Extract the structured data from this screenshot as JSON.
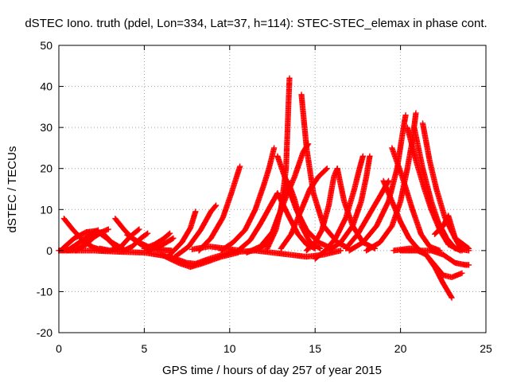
{
  "chart_data": {
    "type": "scatter",
    "title": "dSTEC Iono. truth (pdel, Lon=334, Lat=37, h=114): STEC-STEC_elemax in phase cont.",
    "xlabel": "GPS time / hours of day 257 of year 2015",
    "ylabel": "dSTEC  / TECUs",
    "xlim": [
      0,
      25
    ],
    "ylim": [
      -20,
      50
    ],
    "x_ticks": [
      0,
      5,
      10,
      15,
      20,
      25
    ],
    "y_ticks": [
      -20,
      -10,
      0,
      10,
      20,
      30,
      40,
      50
    ],
    "grid": true,
    "marker": "+",
    "colors": {
      "series": "#ff0000",
      "grid": "#a0a0a0",
      "axis": "#000000"
    },
    "series": [
      {
        "values": [
          [
            0.0,
            0.0
          ],
          [
            0.6,
            0.3
          ],
          [
            1.2,
            2.0
          ],
          [
            1.8,
            3.8
          ],
          [
            2.3,
            5.0
          ]
        ]
      },
      {
        "values": [
          [
            0.3,
            7.8
          ],
          [
            0.8,
            5.2
          ],
          [
            1.4,
            2.5
          ],
          [
            2.0,
            0.8
          ],
          [
            2.6,
            0.0
          ]
        ]
      },
      {
        "values": [
          [
            0.2,
            0.4
          ],
          [
            0.9,
            3.0
          ],
          [
            1.6,
            4.5
          ],
          [
            2.2,
            4.8
          ],
          [
            2.8,
            3.0
          ],
          [
            3.3,
            1.0
          ]
        ]
      },
      {
        "values": [
          [
            0.5,
            0.0
          ],
          [
            1.2,
            0.6
          ],
          [
            1.9,
            2.8
          ],
          [
            2.5,
            4.5
          ],
          [
            2.9,
            5.2
          ]
        ]
      },
      {
        "values": [
          [
            1.0,
            0.0
          ],
          [
            1.6,
            1.5
          ],
          [
            2.1,
            3.5
          ],
          [
            2.5,
            4.5
          ],
          [
            3.1,
            2.0
          ],
          [
            3.8,
            0.3
          ]
        ]
      },
      {
        "values": [
          [
            3.3,
            7.8
          ],
          [
            3.8,
            5.2
          ],
          [
            4.3,
            3.0
          ],
          [
            4.8,
            1.5
          ],
          [
            5.3,
            0.5
          ]
        ]
      },
      {
        "values": [
          [
            2.4,
            0.5
          ],
          [
            3.0,
            0.0
          ],
          [
            3.6,
            0.8
          ],
          [
            4.2,
            3.5
          ],
          [
            4.7,
            5.2
          ]
        ]
      },
      {
        "values": [
          [
            3.8,
            0.0
          ],
          [
            4.3,
            1.0
          ],
          [
            4.8,
            3.0
          ],
          [
            5.2,
            4.2
          ]
        ]
      },
      {
        "values": [
          [
            4.0,
            3.8
          ],
          [
            4.7,
            2.0
          ],
          [
            5.2,
            1.0
          ],
          [
            5.9,
            0.2
          ],
          [
            6.6,
            0.0
          ]
        ]
      },
      {
        "values": [
          [
            5.0,
            0.5
          ],
          [
            5.6,
            1.5
          ],
          [
            6.1,
            2.8
          ],
          [
            6.5,
            4.2
          ]
        ]
      },
      {
        "values": [
          [
            5.2,
            0.0
          ],
          [
            5.8,
            0.8
          ],
          [
            6.3,
            2.0
          ],
          [
            6.7,
            3.0
          ]
        ]
      },
      {
        "values": [
          [
            0.0,
            0.0
          ],
          [
            2.0,
            0.0
          ],
          [
            3.5,
            -0.3
          ],
          [
            5.0,
            -0.5
          ],
          [
            6.5,
            -1.5
          ],
          [
            7.5,
            -3.0
          ],
          [
            8.0,
            -3.2
          ],
          [
            8.8,
            -2.0
          ],
          [
            10.0,
            -0.5
          ],
          [
            11.5,
            0.0
          ]
        ]
      },
      {
        "values": [
          [
            6.0,
            -1.0
          ],
          [
            7.0,
            -3.0
          ],
          [
            7.7,
            -4.0
          ],
          [
            8.5,
            -3.0
          ],
          [
            9.5,
            -1.5
          ],
          [
            10.5,
            -0.5
          ]
        ]
      },
      {
        "values": [
          [
            6.5,
            -1.0
          ],
          [
            7.2,
            2.0
          ],
          [
            7.7,
            5.5
          ],
          [
            8.0,
            9.5
          ]
        ]
      },
      {
        "values": [
          [
            6.8,
            -1.5
          ],
          [
            7.6,
            1.0
          ],
          [
            8.3,
            5.0
          ],
          [
            8.9,
            9.5
          ],
          [
            9.2,
            11.0
          ]
        ]
      },
      {
        "values": [
          [
            8.2,
            0.0
          ],
          [
            8.9,
            3.0
          ],
          [
            9.6,
            8.0
          ],
          [
            10.1,
            14.0
          ],
          [
            10.6,
            20.5
          ]
        ]
      },
      {
        "values": [
          [
            7.8,
            0.3
          ],
          [
            8.8,
            1.0
          ],
          [
            9.8,
            0.5
          ],
          [
            10.6,
            0.0
          ]
        ]
      },
      {
        "values": [
          [
            9.5,
            0.0
          ],
          [
            10.2,
            2.0
          ],
          [
            10.9,
            5.0
          ],
          [
            11.5,
            10.0
          ],
          [
            12.0,
            16.0
          ],
          [
            12.3,
            20.0
          ],
          [
            12.6,
            25.0
          ]
        ]
      },
      {
        "values": [
          [
            10.5,
            0.0
          ],
          [
            11.2,
            2.5
          ],
          [
            11.8,
            6.5
          ],
          [
            12.4,
            11.0
          ],
          [
            12.8,
            14.0
          ],
          [
            13.5,
            8.0
          ],
          [
            14.0,
            4.0
          ],
          [
            14.5,
            1.5
          ],
          [
            15.0,
            0.5
          ]
        ]
      },
      {
        "values": [
          [
            11.0,
            -0.5
          ],
          [
            11.8,
            1.0
          ],
          [
            12.5,
            4.5
          ],
          [
            13.0,
            10.0
          ],
          [
            13.3,
            20.0
          ],
          [
            13.5,
            42.0
          ]
        ]
      },
      {
        "values": [
          [
            11.5,
            0.0
          ],
          [
            12.1,
            1.5
          ],
          [
            12.6,
            5.0
          ],
          [
            13.2,
            12.0
          ],
          [
            13.8,
            18.0
          ],
          [
            14.3,
            24.0
          ],
          [
            14.6,
            26.0
          ]
        ]
      },
      {
        "values": [
          [
            12.2,
            0.5
          ],
          [
            12.7,
            5.0
          ],
          [
            13.1,
            12.0
          ],
          [
            13.4,
            17.0
          ],
          [
            13.8,
            12.5
          ],
          [
            14.2,
            6.0
          ],
          [
            14.7,
            2.0
          ],
          [
            15.3,
            0.5
          ]
        ]
      },
      {
        "values": [
          [
            12.8,
            23.0
          ],
          [
            13.3,
            17.0
          ],
          [
            13.9,
            10.0
          ],
          [
            14.5,
            5.0
          ],
          [
            15.2,
            2.0
          ],
          [
            16.0,
            0.5
          ]
        ]
      },
      {
        "values": [
          [
            14.2,
            38.0
          ],
          [
            14.5,
            25.0
          ],
          [
            14.9,
            14.0
          ],
          [
            15.5,
            6.0
          ],
          [
            16.3,
            2.0
          ],
          [
            17.0,
            0.5
          ]
        ]
      },
      {
        "values": [
          [
            11.5,
            0.0
          ],
          [
            12.5,
            -0.5
          ],
          [
            13.5,
            -1.0
          ],
          [
            14.5,
            -1.5
          ],
          [
            15.5,
            -1.0
          ],
          [
            16.5,
            0.0
          ]
        ]
      },
      {
        "values": [
          [
            13.0,
            0.5
          ],
          [
            13.6,
            4.0
          ],
          [
            14.2,
            10.0
          ],
          [
            14.7,
            15.0
          ],
          [
            15.2,
            18.0
          ],
          [
            15.7,
            20.0
          ]
        ]
      },
      {
        "values": [
          [
            14.5,
            0.0
          ],
          [
            15.0,
            2.0
          ],
          [
            15.4,
            5.0
          ],
          [
            15.8,
            11.0
          ],
          [
            16.1,
            18.0
          ],
          [
            16.3,
            20.0
          ]
        ]
      },
      {
        "values": [
          [
            15.0,
            -2.0
          ],
          [
            15.6,
            0.0
          ],
          [
            16.2,
            3.0
          ],
          [
            16.8,
            8.0
          ],
          [
            17.3,
            15.0
          ],
          [
            17.6,
            20.0
          ],
          [
            17.8,
            23.0
          ]
        ]
      },
      {
        "values": [
          [
            16.3,
            20.0
          ],
          [
            16.7,
            12.0
          ],
          [
            17.2,
            6.0
          ],
          [
            17.8,
            2.0
          ],
          [
            18.5,
            0.5
          ]
        ]
      },
      {
        "values": [
          [
            15.8,
            0.0
          ],
          [
            16.5,
            2.0
          ],
          [
            17.2,
            6.0
          ],
          [
            17.7,
            12.0
          ],
          [
            18.0,
            18.0
          ],
          [
            18.2,
            23.0
          ]
        ]
      },
      {
        "values": [
          [
            16.8,
            0.5
          ],
          [
            17.5,
            4.0
          ],
          [
            18.2,
            9.0
          ],
          [
            18.9,
            14.0
          ],
          [
            19.3,
            17.0
          ]
        ]
      },
      {
        "values": [
          [
            17.0,
            0.0
          ],
          [
            17.8,
            2.0
          ],
          [
            18.6,
            6.0
          ],
          [
            19.3,
            12.0
          ],
          [
            19.8,
            20.0
          ],
          [
            20.1,
            28.0
          ],
          [
            20.3,
            33.0
          ]
        ]
      },
      {
        "values": [
          [
            18.0,
            0.0
          ],
          [
            18.8,
            2.0
          ],
          [
            19.5,
            6.0
          ],
          [
            20.0,
            12.0
          ],
          [
            20.4,
            20.0
          ],
          [
            20.7,
            27.0
          ],
          [
            20.9,
            33.5
          ]
        ]
      },
      {
        "values": [
          [
            19.0,
            17.0
          ],
          [
            19.5,
            12.0
          ],
          [
            20.0,
            7.0
          ],
          [
            20.5,
            3.0
          ],
          [
            21.0,
            0.5
          ]
        ]
      },
      {
        "values": [
          [
            20.4,
            30.0
          ],
          [
            20.9,
            22.0
          ],
          [
            21.4,
            15.0
          ],
          [
            21.8,
            10.0
          ],
          [
            22.3,
            5.0
          ],
          [
            22.8,
            1.5
          ],
          [
            23.5,
            0.0
          ]
        ]
      },
      {
        "values": [
          [
            20.8,
            30.0
          ],
          [
            21.3,
            20.0
          ],
          [
            21.8,
            12.0
          ],
          [
            22.2,
            7.0
          ],
          [
            22.7,
            3.0
          ],
          [
            23.2,
            0.5
          ],
          [
            24.0,
            0.0
          ]
        ]
      },
      {
        "values": [
          [
            21.3,
            31.0
          ],
          [
            21.7,
            22.0
          ],
          [
            22.1,
            15.0
          ],
          [
            22.6,
            8.0
          ],
          [
            23.2,
            3.0
          ],
          [
            24.0,
            0.5
          ]
        ]
      },
      {
        "values": [
          [
            19.6,
            0.0
          ],
          [
            20.5,
            0.5
          ],
          [
            21.0,
            0.5
          ],
          [
            21.5,
            -1.0
          ],
          [
            22.0,
            -4.0
          ],
          [
            22.5,
            -8.0
          ],
          [
            23.0,
            -11.5
          ]
        ]
      },
      {
        "values": [
          [
            20.0,
            0.0
          ],
          [
            21.0,
            0.0
          ],
          [
            21.5,
            -1.0
          ],
          [
            22.0,
            -3.5
          ],
          [
            22.5,
            -6.0
          ],
          [
            23.0,
            -6.5
          ],
          [
            23.6,
            -5.5
          ]
        ]
      },
      {
        "values": [
          [
            20.5,
            0.0
          ],
          [
            21.8,
            0.0
          ],
          [
            22.5,
            -1.0
          ],
          [
            23.2,
            -3.0
          ],
          [
            23.8,
            -3.5
          ],
          [
            24.0,
            -3.5
          ]
        ]
      },
      {
        "values": [
          [
            22.0,
            4.0
          ],
          [
            22.5,
            6.0
          ],
          [
            22.8,
            8.5
          ],
          [
            23.2,
            3.0
          ],
          [
            23.6,
            0.0
          ]
        ]
      },
      {
        "values": [
          [
            19.5,
            25.0
          ],
          [
            20.1,
            18.0
          ],
          [
            20.7,
            10.0
          ],
          [
            21.2,
            4.0
          ],
          [
            21.7,
            1.0
          ],
          [
            22.3,
            0.0
          ]
        ]
      }
    ]
  }
}
